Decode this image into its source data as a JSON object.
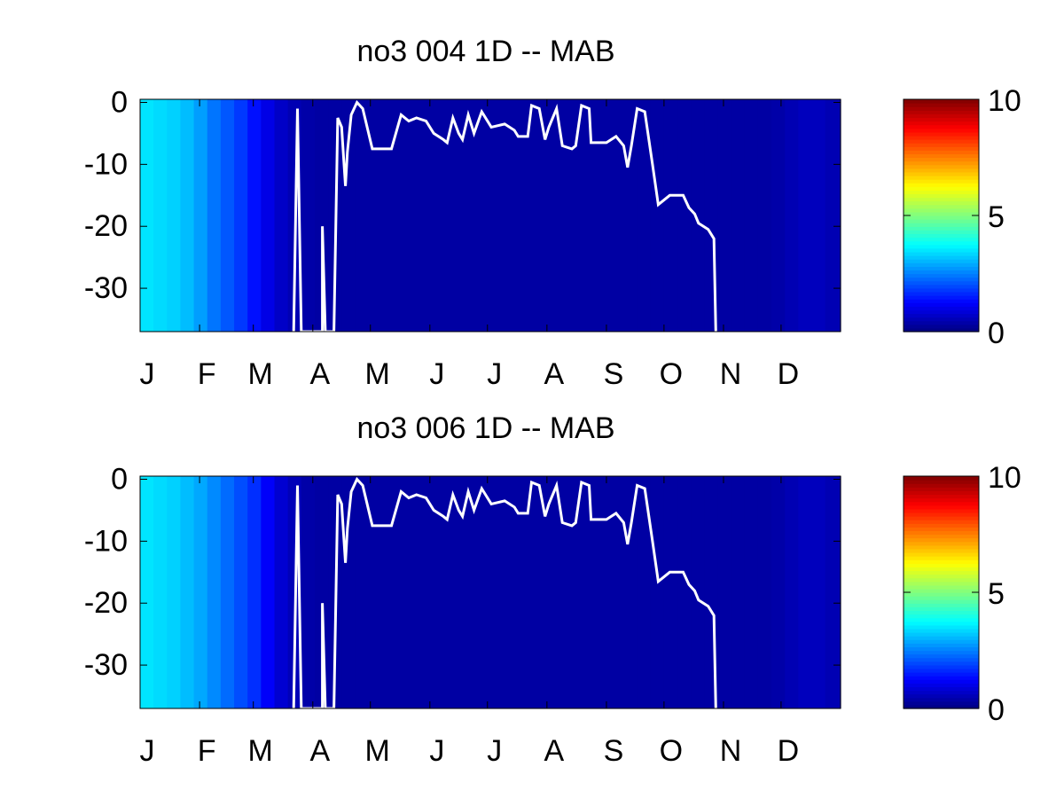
{
  "chart_data": [
    {
      "type": "heatmap",
      "title": "no3  004 1D   -- MAB",
      "xlim": [
        1,
        366
      ],
      "ylim": [
        -37,
        0.5
      ],
      "xticks": [
        {
          "value": 1,
          "label": "J"
        },
        {
          "value": 32,
          "label": "F"
        },
        {
          "value": 60,
          "label": "M"
        },
        {
          "value": 91,
          "label": "A"
        },
        {
          "value": 121,
          "label": "M"
        },
        {
          "value": 152,
          "label": "J"
        },
        {
          "value": 182,
          "label": "J"
        },
        {
          "value": 213,
          "label": "A"
        },
        {
          "value": 244,
          "label": "S"
        },
        {
          "value": 274,
          "label": "O"
        },
        {
          "value": 305,
          "label": "N"
        },
        {
          "value": 335,
          "label": "D"
        }
      ],
      "yticks": [
        0,
        -10,
        -20,
        -30
      ],
      "clim": [
        0,
        10
      ],
      "cticks": [
        0,
        5,
        10
      ],
      "colormap": "jet",
      "x": [
        1,
        8,
        15,
        22,
        29,
        36,
        43,
        50,
        57,
        64,
        71,
        78,
        85,
        92,
        99,
        106,
        113,
        120,
        127,
        134,
        141,
        148,
        155,
        162,
        169,
        176,
        183,
        190,
        197,
        204,
        211,
        218,
        225,
        232,
        239,
        246,
        253,
        260,
        267,
        274,
        281,
        288,
        295,
        302,
        309,
        316,
        323,
        330,
        337,
        344,
        351,
        358
      ],
      "values": [
        3.5,
        3.4,
        3.3,
        3.1,
        2.8,
        2.4,
        2.1,
        1.8,
        1.4,
        1.0,
        0.7,
        0.5,
        0.4,
        0.35,
        0.35,
        0.35,
        0.35,
        0.35,
        0.35,
        0.35,
        0.35,
        0.35,
        0.35,
        0.35,
        0.35,
        0.35,
        0.35,
        0.35,
        0.35,
        0.35,
        0.35,
        0.35,
        0.35,
        0.35,
        0.35,
        0.35,
        0.35,
        0.35,
        0.35,
        0.35,
        0.35,
        0.35,
        0.35,
        0.35,
        0.35,
        0.35,
        0.35,
        0.4,
        0.5,
        0.6,
        0.6,
        0.5
      ],
      "line": {
        "color": "#ffffff",
        "x": [
          81,
          83,
          85,
          96,
          96,
          97.5,
          102,
          104,
          106,
          108,
          109,
          111,
          114,
          117,
          122,
          132,
          137,
          141,
          145,
          150,
          154,
          159,
          161,
          164,
          167,
          169,
          172,
          175,
          179,
          184,
          191,
          196,
          198,
          203,
          205,
          209,
          212,
          214,
          218,
          221,
          226,
          228,
          231,
          235,
          236,
          244,
          249,
          253,
          255,
          257,
          260,
          264,
          268,
          271,
          277,
          284,
          287,
          290,
          292,
          297,
          300,
          301
        ],
        "y": [
          -37,
          -1,
          -37,
          -37,
          -20,
          -37,
          -37,
          -2.5,
          -4,
          -13.5,
          -8,
          -2,
          0,
          -1,
          -7.5,
          -7.5,
          -2,
          -3,
          -2.5,
          -3,
          -5,
          -6,
          -6.5,
          -2.5,
          -5,
          -6,
          -2,
          -5,
          -1.5,
          -4,
          -3.5,
          -4.5,
          -5.5,
          -5.5,
          -0.5,
          -1,
          -6,
          -4,
          -1,
          -7,
          -7.5,
          -7,
          -0.5,
          -1,
          -6.5,
          -6.5,
          -5.5,
          -7,
          -10.5,
          -7,
          -1,
          -1.5,
          -10,
          -16.5,
          -15,
          -15,
          -17,
          -18,
          -19.5,
          -20.5,
          -22,
          -37
        ]
      }
    },
    {
      "type": "heatmap",
      "title": "no3  006 1D   -- MAB",
      "xlim": [
        1,
        366
      ],
      "ylim": [
        -37,
        0.5
      ],
      "xticks": [
        {
          "value": 1,
          "label": "J"
        },
        {
          "value": 32,
          "label": "F"
        },
        {
          "value": 60,
          "label": "M"
        },
        {
          "value": 91,
          "label": "A"
        },
        {
          "value": 121,
          "label": "M"
        },
        {
          "value": 152,
          "label": "J"
        },
        {
          "value": 182,
          "label": "J"
        },
        {
          "value": 213,
          "label": "A"
        },
        {
          "value": 244,
          "label": "S"
        },
        {
          "value": 274,
          "label": "O"
        },
        {
          "value": 305,
          "label": "N"
        },
        {
          "value": 335,
          "label": "D"
        }
      ],
      "yticks": [
        0,
        -10,
        -20,
        -30
      ],
      "clim": [
        0,
        10
      ],
      "cticks": [
        0,
        5,
        10
      ],
      "colormap": "jet",
      "x": [
        1,
        8,
        15,
        22,
        29,
        36,
        43,
        50,
        57,
        64,
        71,
        78,
        85,
        92,
        99,
        106,
        113,
        120,
        127,
        134,
        141,
        148,
        155,
        162,
        169,
        176,
        183,
        190,
        197,
        204,
        211,
        218,
        225,
        232,
        239,
        246,
        253,
        260,
        267,
        274,
        281,
        288,
        295,
        302,
        309,
        316,
        323,
        330,
        337,
        344,
        351,
        358
      ],
      "values": [
        3.5,
        3.4,
        3.3,
        3.1,
        2.9,
        2.6,
        2.3,
        2.0,
        1.7,
        1.2,
        0.8,
        0.55,
        0.4,
        0.35,
        0.35,
        0.35,
        0.35,
        0.35,
        0.35,
        0.35,
        0.35,
        0.35,
        0.35,
        0.35,
        0.35,
        0.35,
        0.35,
        0.35,
        0.35,
        0.35,
        0.35,
        0.35,
        0.35,
        0.35,
        0.35,
        0.35,
        0.35,
        0.35,
        0.35,
        0.35,
        0.35,
        0.35,
        0.35,
        0.35,
        0.35,
        0.35,
        0.35,
        0.4,
        0.5,
        0.6,
        0.6,
        0.5
      ],
      "line": {
        "color": "#ffffff",
        "x": [
          81,
          83,
          85,
          96,
          96,
          97.5,
          102,
          104,
          106,
          108,
          109,
          111,
          114,
          117,
          122,
          132,
          137,
          141,
          145,
          150,
          154,
          159,
          161,
          164,
          167,
          169,
          172,
          175,
          179,
          184,
          191,
          196,
          198,
          203,
          205,
          209,
          212,
          214,
          218,
          221,
          226,
          228,
          231,
          235,
          236,
          244,
          249,
          253,
          255,
          257,
          260,
          264,
          268,
          271,
          277,
          284,
          287,
          290,
          292,
          297,
          300,
          301
        ],
        "y": [
          -37,
          -1,
          -37,
          -37,
          -20,
          -37,
          -37,
          -2.5,
          -4,
          -13.5,
          -8,
          -2,
          0,
          -1,
          -7.5,
          -7.5,
          -2,
          -3,
          -2.5,
          -3,
          -5,
          -6,
          -6.5,
          -2.5,
          -5,
          -6,
          -2,
          -5,
          -1.5,
          -4,
          -3.5,
          -4.5,
          -5.5,
          -5.5,
          -0.5,
          -1,
          -6,
          -4,
          -1,
          -7,
          -7.5,
          -7,
          -0.5,
          -1,
          -6.5,
          -6.5,
          -5.5,
          -7,
          -10.5,
          -7,
          -1,
          -1.5,
          -10,
          -16.5,
          -15,
          -15,
          -17,
          -18,
          -19.5,
          -20.5,
          -22,
          -37
        ]
      }
    }
  ]
}
